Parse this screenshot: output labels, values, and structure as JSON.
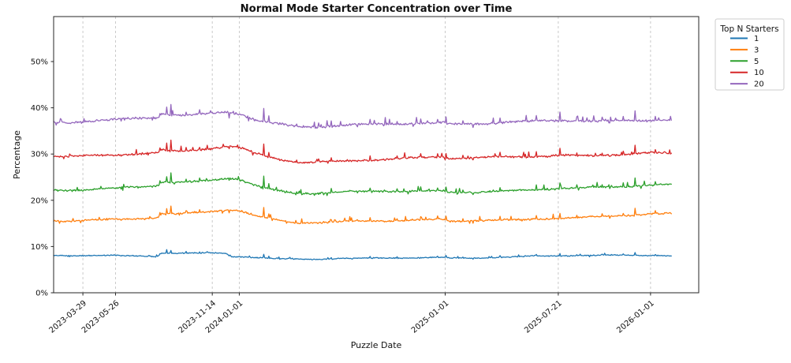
{
  "figure": {
    "title": "Normal Mode Starter Concentration over Time",
    "xlabel": "Puzzle Date",
    "ylabel": "Percentage"
  },
  "legend": {
    "title": "Top N Starters",
    "position": "outside-top-right"
  },
  "chart_data": {
    "type": "line",
    "title": "Normal Mode Starter Concentration over Time",
    "xlabel": "Puzzle Date",
    "ylabel": "Percentage",
    "grid": "vertical-dashed-gridlines-only",
    "legend_title": "Top N Starters",
    "legend_position": "outside-top-right",
    "x_axis": {
      "start_date": "2023-02-05",
      "end_date": "2026-02-08",
      "total_days": 1099,
      "ticks": [
        {
          "label": "2023-03-29",
          "day": 52
        },
        {
          "label": "2023-05-26",
          "day": 110
        },
        {
          "label": "2023-11-14",
          "day": 282
        },
        {
          "label": "2024-01-01",
          "day": 330
        },
        {
          "label": "2025-01-01",
          "day": 696
        },
        {
          "label": "2025-07-21",
          "day": 897
        },
        {
          "label": "2026-01-01",
          "day": 1061
        }
      ]
    },
    "y_axis": {
      "ticks": [
        {
          "value": 0,
          "label": "0%"
        },
        {
          "value": 10,
          "label": "10%"
        },
        {
          "value": 20,
          "label": "20%"
        },
        {
          "value": 30,
          "label": "30%"
        },
        {
          "value": 40,
          "label": "40%"
        },
        {
          "value": 50,
          "label": "50%"
        }
      ],
      "range_pct": [
        0,
        59.7
      ]
    },
    "series": [
      {
        "name": "1",
        "color": "#1f77b4",
        "noise_amp": 0.13,
        "wobble_amp": 0.06,
        "spike_scale": 0.3,
        "seed": 11,
        "trend_keypoints": [
          [
            0,
            8.1
          ],
          [
            52,
            8.1
          ],
          [
            110,
            8.1
          ],
          [
            150,
            8.0
          ],
          [
            186,
            7.9
          ],
          [
            192,
            8.6
          ],
          [
            215,
            8.5
          ],
          [
            245,
            8.5
          ],
          [
            282,
            8.6
          ],
          [
            308,
            8.5
          ],
          [
            316,
            7.8
          ],
          [
            334,
            7.8
          ],
          [
            360,
            7.6
          ],
          [
            400,
            7.4
          ],
          [
            450,
            7.3
          ],
          [
            520,
            7.4
          ],
          [
            580,
            7.5
          ],
          [
            640,
            7.5
          ],
          [
            692,
            7.6
          ],
          [
            706,
            7.5
          ],
          [
            760,
            7.6
          ],
          [
            830,
            7.8
          ],
          [
            848,
            8.0
          ],
          [
            900,
            8.0
          ],
          [
            950,
            8.0
          ],
          [
            1000,
            8.1
          ],
          [
            1060,
            8.1
          ],
          [
            1099,
            8.0
          ]
        ]
      },
      {
        "name": "3",
        "color": "#ff7f0e",
        "noise_amp": 0.22,
        "wobble_amp": 0.09,
        "spike_scale": 0.7,
        "seed": 22,
        "trend_keypoints": [
          [
            0,
            15.6
          ],
          [
            25,
            15.5
          ],
          [
            52,
            15.6
          ],
          [
            110,
            15.9
          ],
          [
            150,
            16.1
          ],
          [
            186,
            16.3
          ],
          [
            192,
            17.3
          ],
          [
            215,
            17.1
          ],
          [
            245,
            17.2
          ],
          [
            282,
            17.6
          ],
          [
            310,
            17.9
          ],
          [
            334,
            17.6
          ],
          [
            360,
            16.5
          ],
          [
            395,
            15.7
          ],
          [
            430,
            15.1
          ],
          [
            470,
            15.2
          ],
          [
            520,
            15.5
          ],
          [
            580,
            15.6
          ],
          [
            640,
            15.7
          ],
          [
            692,
            15.8
          ],
          [
            706,
            15.4
          ],
          [
            760,
            15.6
          ],
          [
            830,
            15.8
          ],
          [
            900,
            16.2
          ],
          [
            950,
            16.4
          ],
          [
            1000,
            16.6
          ],
          [
            1060,
            17.0
          ],
          [
            1099,
            17.1
          ]
        ]
      },
      {
        "name": "5",
        "color": "#2ca02c",
        "noise_amp": 0.24,
        "wobble_amp": 0.09,
        "spike_scale": 0.8,
        "seed": 33,
        "trend_keypoints": [
          [
            0,
            22.3
          ],
          [
            25,
            22.2
          ],
          [
            52,
            22.3
          ],
          [
            110,
            22.6
          ],
          [
            150,
            22.9
          ],
          [
            186,
            23.1
          ],
          [
            192,
            23.9
          ],
          [
            215,
            23.8
          ],
          [
            245,
            23.9
          ],
          [
            282,
            24.4
          ],
          [
            310,
            24.9
          ],
          [
            334,
            24.5
          ],
          [
            360,
            23.2
          ],
          [
            395,
            22.2
          ],
          [
            430,
            21.5
          ],
          [
            470,
            21.5
          ],
          [
            520,
            21.8
          ],
          [
            580,
            21.9
          ],
          [
            640,
            22.0
          ],
          [
            692,
            22.1
          ],
          [
            706,
            21.7
          ],
          [
            760,
            21.9
          ],
          [
            830,
            22.1
          ],
          [
            900,
            22.5
          ],
          [
            950,
            22.7
          ],
          [
            1000,
            22.9
          ],
          [
            1060,
            23.4
          ],
          [
            1099,
            23.5
          ]
        ]
      },
      {
        "name": "10",
        "color": "#d62728",
        "noise_amp": 0.26,
        "wobble_amp": 0.1,
        "spike_scale": 0.85,
        "seed": 44,
        "trend_keypoints": [
          [
            0,
            29.5
          ],
          [
            25,
            29.4
          ],
          [
            52,
            29.5
          ],
          [
            110,
            29.8
          ],
          [
            150,
            30.1
          ],
          [
            186,
            30.3
          ],
          [
            192,
            31.0
          ],
          [
            215,
            30.7
          ],
          [
            245,
            30.8
          ],
          [
            282,
            31.3
          ],
          [
            310,
            31.7
          ],
          [
            334,
            31.2
          ],
          [
            360,
            30.0
          ],
          [
            395,
            28.9
          ],
          [
            430,
            28.2
          ],
          [
            470,
            28.2
          ],
          [
            520,
            28.6
          ],
          [
            580,
            28.9
          ],
          [
            640,
            29.2
          ],
          [
            692,
            29.4
          ],
          [
            706,
            29.0
          ],
          [
            760,
            29.2
          ],
          [
            830,
            29.4
          ],
          [
            900,
            29.8
          ],
          [
            950,
            29.7
          ],
          [
            1000,
            29.9
          ],
          [
            1060,
            30.2
          ],
          [
            1099,
            30.1
          ]
        ]
      },
      {
        "name": "20",
        "color": "#9467bd",
        "noise_amp": 0.28,
        "wobble_amp": 0.1,
        "spike_scale": 1.0,
        "seed": 55,
        "trend_keypoints": [
          [
            0,
            37.0
          ],
          [
            25,
            36.8
          ],
          [
            52,
            37.0
          ],
          [
            110,
            37.4
          ],
          [
            150,
            37.7
          ],
          [
            186,
            37.9
          ],
          [
            192,
            38.7
          ],
          [
            215,
            38.4
          ],
          [
            245,
            38.4
          ],
          [
            282,
            38.9
          ],
          [
            310,
            39.2
          ],
          [
            334,
            38.7
          ],
          [
            360,
            37.4
          ],
          [
            395,
            36.6
          ],
          [
            430,
            35.9
          ],
          [
            470,
            35.8
          ],
          [
            520,
            36.2
          ],
          [
            580,
            36.5
          ],
          [
            640,
            36.7
          ],
          [
            692,
            36.8
          ],
          [
            706,
            36.5
          ],
          [
            760,
            36.6
          ],
          [
            830,
            36.9
          ],
          [
            900,
            37.3
          ],
          [
            950,
            37.1
          ],
          [
            1000,
            37.2
          ],
          [
            1060,
            37.4
          ],
          [
            1099,
            37.3
          ]
        ]
      }
    ],
    "shared_spike_days": [
      [
        120,
        -0.5
      ],
      [
        189,
        0.7
      ],
      [
        201,
        1.6
      ],
      [
        208,
        2.3
      ],
      [
        235,
        0.8
      ],
      [
        260,
        0.7
      ],
      [
        312,
        -0.7
      ],
      [
        374,
        2.9
      ],
      [
        382,
        1.3
      ],
      [
        432,
        0.6
      ],
      [
        493,
        1.0
      ],
      [
        540,
        -0.5
      ],
      [
        563,
        0.9
      ],
      [
        610,
        0.7
      ],
      [
        652,
        0.9
      ],
      [
        683,
        0.8
      ],
      [
        697,
        1.1
      ],
      [
        728,
        0.7
      ],
      [
        745,
        -0.6
      ],
      [
        793,
        0.9
      ],
      [
        858,
        1.2
      ],
      [
        900,
        1.7
      ],
      [
        930,
        0.8
      ],
      [
        975,
        0.7
      ],
      [
        988,
        -0.5
      ],
      [
        1013,
        0.9
      ],
      [
        1034,
        2.1
      ],
      [
        1069,
        0.9
      ]
    ],
    "colors": {
      "spine": "#262626",
      "gridline": "#c4c4c4",
      "background": "#ffffff",
      "text": "#111111",
      "legend_border": "#cccccc"
    }
  }
}
